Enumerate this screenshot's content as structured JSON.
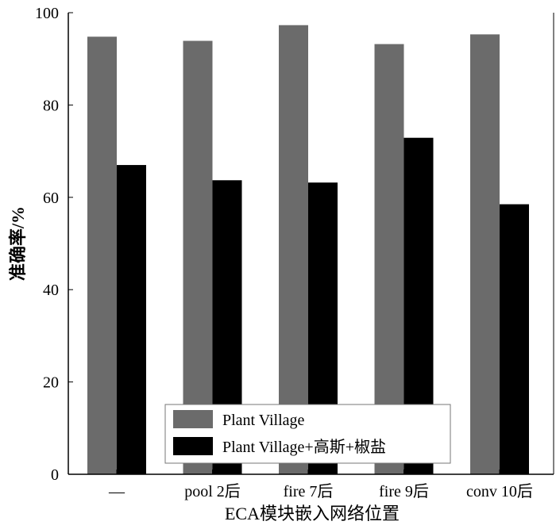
{
  "chart_data": {
    "type": "bar",
    "title": "",
    "xlabel": "ECA模块嵌入网络位置",
    "ylabel": "准确率/%",
    "categories": [
      "—",
      "pool 2后",
      "fire 7后",
      "fire 9后",
      "conv 10后"
    ],
    "series": [
      {
        "name": "Plant Village",
        "values": [
          94.8,
          93.9,
          97.3,
          93.2,
          95.3
        ],
        "color": "#6b6b6b"
      },
      {
        "name": "Plant Village+高斯+椒盐",
        "values": [
          67.0,
          63.7,
          63.2,
          72.9,
          58.5
        ],
        "color": "#000000"
      }
    ],
    "ylim": [
      0,
      100
    ],
    "yticks": [
      0,
      20,
      40,
      60,
      80,
      100
    ],
    "grid": false,
    "legend_position": "bottom-center"
  }
}
